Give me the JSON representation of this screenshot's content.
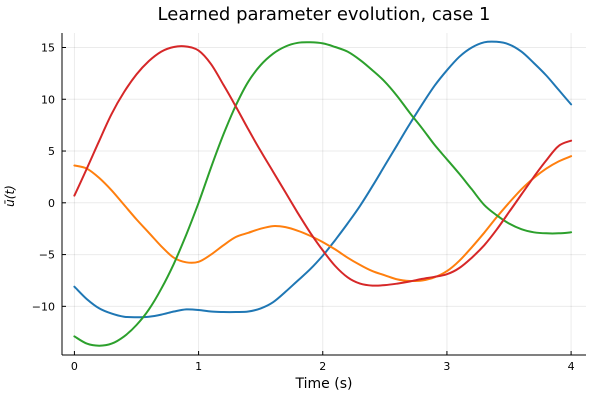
{
  "chart_data": {
    "type": "line",
    "title": "Learned parameter evolution, case 1",
    "xlabel": "Time (s)",
    "ylabel": "ū(t)",
    "xlim": [
      -0.1,
      4.12
    ],
    "ylim": [
      -14.7,
      16.4
    ],
    "xticks": [
      0,
      1,
      2,
      3,
      4
    ],
    "yticks": [
      -10,
      -5,
      0,
      5,
      10,
      15
    ],
    "ytick_labels": [
      "−10",
      "−5",
      "0",
      "5",
      "10",
      "15"
    ],
    "grid": true,
    "legend": "none",
    "series": [
      {
        "color": "#1f77b4",
        "x": [
          0,
          0.1,
          0.2,
          0.3,
          0.4,
          0.5,
          0.6,
          0.7,
          0.8,
          0.9,
          1.0,
          1.1,
          1.2,
          1.3,
          1.4,
          1.5,
          1.6,
          1.7,
          1.8,
          1.9,
          2.0,
          2.1,
          2.2,
          2.3,
          2.4,
          2.5,
          2.6,
          2.7,
          2.8,
          2.9,
          3.0,
          3.1,
          3.2,
          3.3,
          3.4,
          3.5,
          3.6,
          3.7,
          3.8,
          3.9,
          4.0
        ],
        "y": [
          -8.1,
          -9.3,
          -10.2,
          -10.7,
          -11.0,
          -11.05,
          -11.0,
          -10.8,
          -10.5,
          -10.3,
          -10.35,
          -10.5,
          -10.55,
          -10.55,
          -10.5,
          -10.2,
          -9.6,
          -8.6,
          -7.5,
          -6.4,
          -5.1,
          -3.6,
          -2.0,
          -0.3,
          1.6,
          3.6,
          5.6,
          7.6,
          9.5,
          11.3,
          12.8,
          14.1,
          15.0,
          15.5,
          15.55,
          15.3,
          14.6,
          13.5,
          12.3,
          10.9,
          9.5
        ]
      },
      {
        "color": "#ff7f0e",
        "x": [
          0,
          0.1,
          0.2,
          0.3,
          0.4,
          0.5,
          0.6,
          0.7,
          0.8,
          0.9,
          1.0,
          1.1,
          1.2,
          1.3,
          1.4,
          1.5,
          1.6,
          1.7,
          1.8,
          1.9,
          2.0,
          2.1,
          2.2,
          2.3,
          2.4,
          2.5,
          2.6,
          2.7,
          2.8,
          2.9,
          3.0,
          3.1,
          3.2,
          3.3,
          3.4,
          3.5,
          3.6,
          3.7,
          3.8,
          3.9,
          4.0
        ],
        "y": [
          3.6,
          3.3,
          2.4,
          1.2,
          -0.2,
          -1.6,
          -2.9,
          -4.2,
          -5.3,
          -5.75,
          -5.7,
          -5.0,
          -4.1,
          -3.3,
          -2.9,
          -2.5,
          -2.25,
          -2.35,
          -2.7,
          -3.2,
          -3.8,
          -4.5,
          -5.3,
          -6.0,
          -6.6,
          -7.0,
          -7.4,
          -7.55,
          -7.5,
          -7.2,
          -6.6,
          -5.6,
          -4.3,
          -2.9,
          -1.4,
          0.0,
          1.3,
          2.4,
          3.3,
          4.0,
          4.5
        ]
      },
      {
        "color": "#2ca02c",
        "x": [
          0,
          0.1,
          0.2,
          0.3,
          0.4,
          0.5,
          0.6,
          0.7,
          0.8,
          0.9,
          1.0,
          1.1,
          1.2,
          1.3,
          1.4,
          1.5,
          1.6,
          1.7,
          1.8,
          1.9,
          2.0,
          2.1,
          2.2,
          2.3,
          2.4,
          2.5,
          2.6,
          2.7,
          2.8,
          2.9,
          3.0,
          3.1,
          3.2,
          3.3,
          3.4,
          3.5,
          3.6,
          3.7,
          3.8,
          3.9,
          4.0
        ],
        "y": [
          -12.9,
          -13.6,
          -13.8,
          -13.6,
          -12.9,
          -11.8,
          -10.3,
          -8.3,
          -5.9,
          -3.1,
          0.0,
          3.4,
          6.6,
          9.4,
          11.7,
          13.3,
          14.4,
          15.1,
          15.45,
          15.5,
          15.4,
          15.05,
          14.6,
          13.8,
          12.8,
          11.7,
          10.3,
          8.7,
          7.2,
          5.6,
          4.2,
          2.8,
          1.3,
          -0.2,
          -1.2,
          -2.0,
          -2.55,
          -2.85,
          -2.95,
          -2.95,
          -2.85
        ]
      },
      {
        "color": "#d62728",
        "x": [
          0,
          0.1,
          0.2,
          0.3,
          0.4,
          0.5,
          0.6,
          0.7,
          0.8,
          0.9,
          1.0,
          1.1,
          1.2,
          1.3,
          1.4,
          1.5,
          1.6,
          1.7,
          1.8,
          1.9,
          2.0,
          2.1,
          2.2,
          2.3,
          2.4,
          2.5,
          2.6,
          2.7,
          2.8,
          2.9,
          3.0,
          3.1,
          3.2,
          3.3,
          3.4,
          3.5,
          3.6,
          3.7,
          3.8,
          3.9,
          4.0
        ],
        "y": [
          0.7,
          3.3,
          6.0,
          8.6,
          10.7,
          12.4,
          13.7,
          14.6,
          15.05,
          15.1,
          14.7,
          13.4,
          11.4,
          9.3,
          7.1,
          5.0,
          3.0,
          1.0,
          -1.0,
          -2.9,
          -4.6,
          -6.1,
          -7.2,
          -7.8,
          -8.0,
          -7.95,
          -7.8,
          -7.6,
          -7.35,
          -7.15,
          -6.9,
          -6.3,
          -5.3,
          -4.1,
          -2.6,
          -0.9,
          0.8,
          2.5,
          4.1,
          5.5,
          6.0
        ]
      }
    ]
  }
}
